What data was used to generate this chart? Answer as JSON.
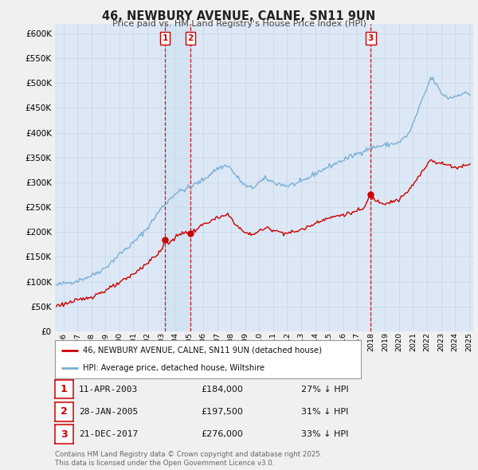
{
  "title": "46, NEWBURY AVENUE, CALNE, SN11 9UN",
  "subtitle": "Price paid vs. HM Land Registry's House Price Index (HPI)",
  "hpi_label": "HPI: Average price, detached house, Wiltshire",
  "price_label": "46, NEWBURY AVENUE, CALNE, SN11 9UN (detached house)",
  "hpi_color": "#7bafd4",
  "price_color": "#cc0000",
  "vline_color": "#cc0000",
  "background_color": "#f0f0f0",
  "plot_bg": "#dce8f5",
  "ylim": [
    0,
    620000
  ],
  "yticks": [
    0,
    50000,
    100000,
    150000,
    200000,
    250000,
    300000,
    350000,
    400000,
    450000,
    500000,
    550000,
    600000
  ],
  "xlim_start": 1995.4,
  "xlim_end": 2025.3,
  "sales": [
    {
      "num": 1,
      "date": "11-APR-2003",
      "year": 2003.27,
      "price": 184000,
      "pct": "27%",
      "x_vline": 2003.27
    },
    {
      "num": 2,
      "date": "28-JAN-2005",
      "year": 2005.07,
      "price": 197500,
      "pct": "31%",
      "x_vline": 2005.07
    },
    {
      "num": 3,
      "date": "21-DEC-2017",
      "year": 2017.97,
      "price": 276000,
      "pct": "33%",
      "x_vline": 2017.97
    }
  ],
  "footer_line1": "Contains HM Land Registry data © Crown copyright and database right 2025.",
  "footer_line2": "This data is licensed under the Open Government Licence v3.0."
}
